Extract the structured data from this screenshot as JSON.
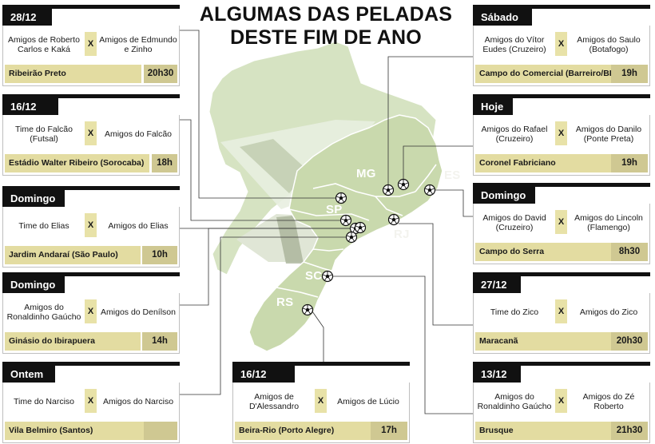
{
  "title_line1": "ALGUMAS DAS PELADAS",
  "title_line2": "DESTE FIM DE ANO",
  "states": [
    "MG",
    "ES",
    "SP",
    "RJ",
    "SC",
    "RS"
  ],
  "colors": {
    "tab": "#111111",
    "venue_fill": "#e3dca1",
    "time_fill": "#cfc892",
    "vs_fill": "#e8e2a8",
    "land": "#cfddb8",
    "ball": "#ffffff"
  },
  "games": [
    {
      "date": "28/12",
      "team_a": "Amigos de Roberto Carlos e Kaká",
      "team_b": "Amigos de Edmundo e Zinho",
      "vs": "X",
      "venue": "Ribeirão Preto",
      "time": "20h30"
    },
    {
      "date": "16/12",
      "team_a": "Time do Falcão (Futsal)",
      "team_b": "Amigos do Falcão",
      "vs": "X",
      "venue": "Estádio Walter Ribeiro (Sorocaba)",
      "time": "18h"
    },
    {
      "date": "Domingo",
      "team_a": "Time do Elias",
      "team_b": "Amigos do Elias",
      "vs": "X",
      "venue": "Jardim Andaraí (São Paulo)",
      "time": "10h"
    },
    {
      "date": "Domingo",
      "team_a": "Amigos do Ronaldinho Gaúcho",
      "team_b": "Amigos do Denílson",
      "vs": "X",
      "venue": "Ginásio do Ibirapuera",
      "time": "14h"
    },
    {
      "date": "Ontem",
      "team_a": "Time do Narciso",
      "team_b": "Amigos do Narciso",
      "vs": "X",
      "venue": "Vila Belmiro (Santos)",
      "time": ""
    },
    {
      "date": "Sábado",
      "team_a": "Amigos do Vítor Eudes (Cruzeiro)",
      "team_b": "Amigos do Saulo (Botafogo)",
      "vs": "X",
      "venue": "Campo do Comercial (Barreiro/BH)",
      "time": "19h"
    },
    {
      "date": "Hoje",
      "team_a": "Amigos do Rafael (Cruzeiro)",
      "team_b": "Amigos do Danilo (Ponte Preta)",
      "vs": "X",
      "venue": "Coronel Fabriciano",
      "time": "19h"
    },
    {
      "date": "Domingo",
      "team_a": "Amigos do David (Cruzeiro)",
      "team_b": "Amigos do Lincoln (Flamengo)",
      "vs": "X",
      "venue": "Campo do Serra",
      "time": "8h30"
    },
    {
      "date": "27/12",
      "team_a": "Time do Zico",
      "team_b": "Amigos do Zico",
      "vs": "X",
      "venue": "Maracanã",
      "time": "20h30"
    },
    {
      "date": "13/12",
      "team_a": "Amigos do Ronaldinho Gaúcho",
      "team_b": "Amigos do Zé Roberto",
      "vs": "X",
      "venue": "Brusque",
      "time": "21h30"
    },
    {
      "date": "16/12",
      "team_a": "Amigos de D'Alessandro",
      "team_b": "Amigos de Lúcio",
      "vs": "X",
      "venue": "Beira-Rio (Porto Alegre)",
      "time": "17h"
    }
  ]
}
